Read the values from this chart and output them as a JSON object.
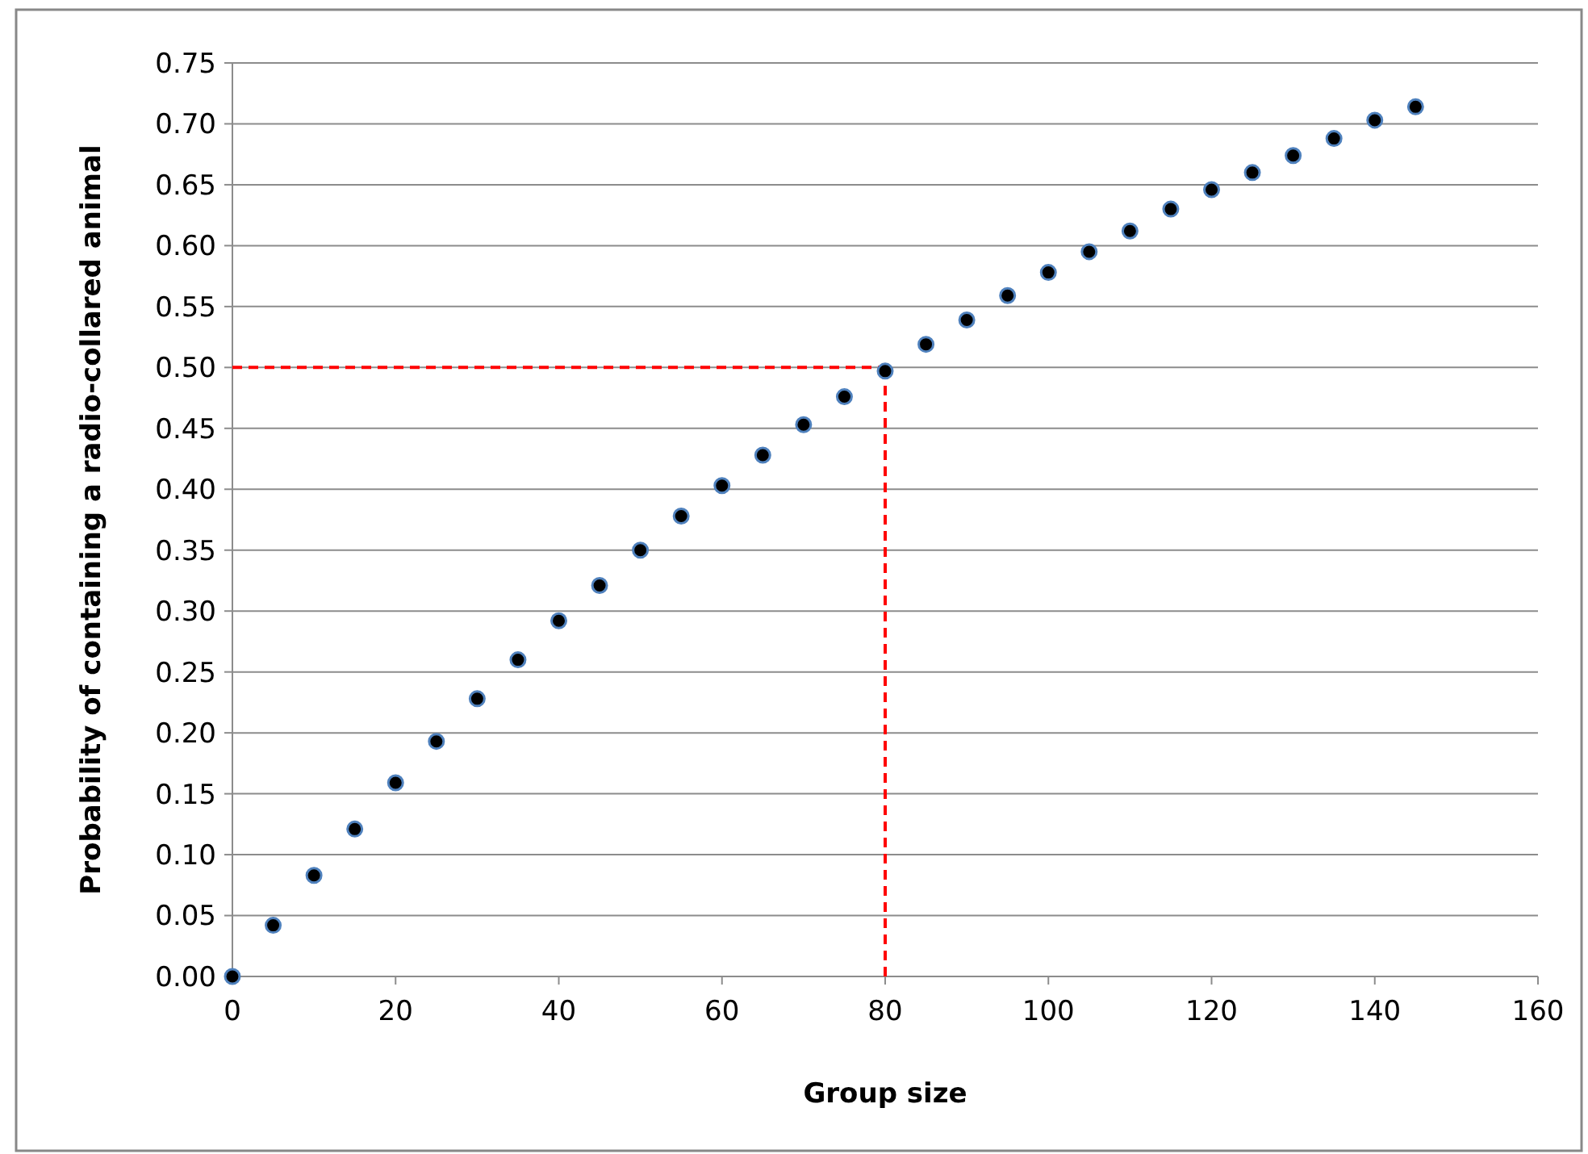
{
  "chart_data": {
    "type": "scatter",
    "xlabel": "Group size",
    "ylabel": "Probability of containing a radio-collared animal",
    "x": [
      0,
      5,
      10,
      15,
      20,
      25,
      30,
      35,
      40,
      45,
      50,
      55,
      60,
      65,
      70,
      75,
      80,
      85,
      90,
      95,
      100,
      105,
      110,
      115,
      120,
      125,
      130,
      135,
      140,
      145
    ],
    "series": [
      {
        "color": "#000000",
        "values": [
          0,
          0.042,
          0.083,
          0.121,
          0.159,
          0.193,
          0.228,
          0.26,
          0.292,
          0.321,
          0.35,
          0.378,
          0.403,
          0.428,
          0.453,
          0.476,
          0.497,
          0.519,
          0.539,
          0.559,
          0.578,
          0.595,
          0.612,
          0.63,
          0.646,
          0.66,
          0.674,
          0.688,
          0.703,
          0.714
        ]
      }
    ],
    "xlim": [
      0,
      160
    ],
    "xticks": [
      0,
      20,
      40,
      60,
      80,
      100,
      120,
      140,
      160
    ],
    "ylim": [
      0,
      0.75
    ],
    "yticks": [
      {
        "value": 0,
        "label": "0.00"
      },
      {
        "value": 0.05,
        "label": "0.05"
      },
      {
        "value": 0.1,
        "label": "0.10"
      },
      {
        "value": 0.15,
        "label": "0.15"
      },
      {
        "value": 0.2,
        "label": "0.20"
      },
      {
        "value": 0.25,
        "label": "0.25"
      },
      {
        "value": 0.3,
        "label": "0.30"
      },
      {
        "value": 0.35,
        "label": "0.35"
      },
      {
        "value": 0.4,
        "label": "0.40"
      },
      {
        "value": 0.45,
        "label": "0.45"
      },
      {
        "value": 0.5,
        "label": "0.50"
      },
      {
        "value": 0.55,
        "label": "0.55"
      },
      {
        "value": 0.6,
        "label": "0.60"
      },
      {
        "value": 0.65,
        "label": "0.65"
      },
      {
        "value": 0.7,
        "label": "0.70"
      },
      {
        "value": 0.75,
        "label": "0.75"
      }
    ],
    "ref_lines": [
      {
        "axis": "y",
        "value": 0.5,
        "color": "#ff0000",
        "line_style": "dashed"
      },
      {
        "axis": "x",
        "value": 80,
        "color": "#ff0000",
        "line_style": "dashed"
      }
    ],
    "grid": "y",
    "marker": "circle"
  }
}
